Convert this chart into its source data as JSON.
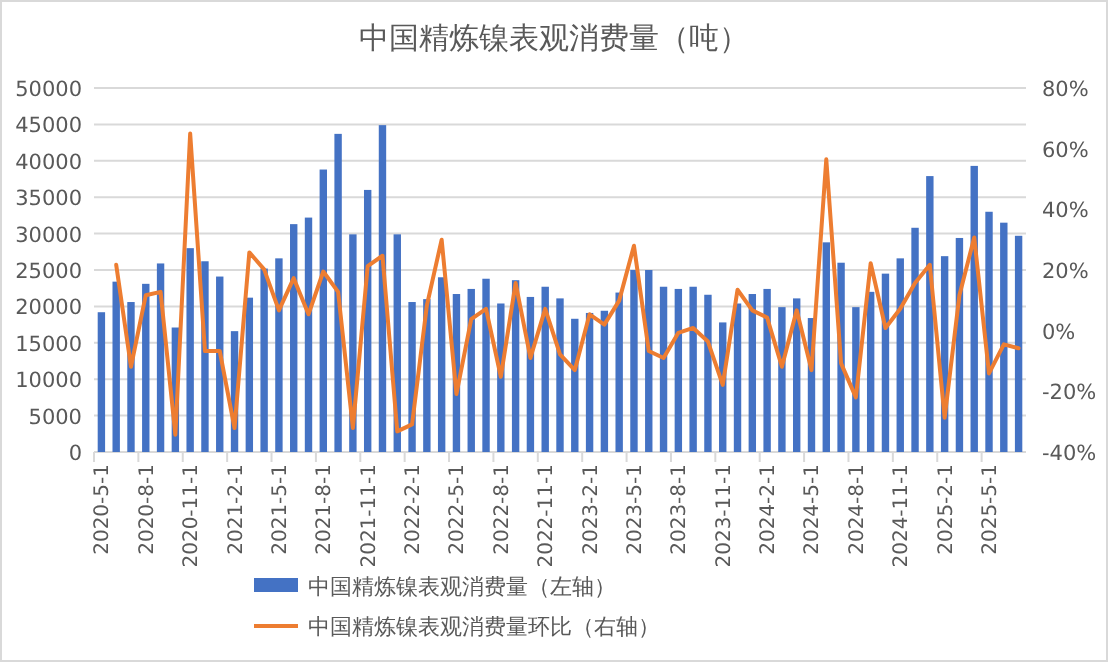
{
  "chart_data": {
    "type": "bar",
    "title": "中国精炼镍表观消费量（吨）",
    "categories": [
      "2020-5-1",
      null,
      null,
      "2020-8-1",
      null,
      null,
      "2020-11-1",
      null,
      null,
      "2021-2-1",
      null,
      null,
      "2021-5-1",
      null,
      null,
      "2021-8-1",
      null,
      null,
      "2021-11-1",
      null,
      null,
      "2022-2-1",
      null,
      null,
      "2022-5-1",
      null,
      null,
      "2022-8-1",
      null,
      null,
      "2022-11-1",
      null,
      null,
      "2023-2-1",
      null,
      null,
      "2023-5-1",
      null,
      null,
      "2023-8-1",
      null,
      null,
      "2023-11-1",
      null,
      null,
      "2024-2-1",
      null,
      null,
      "2024-5-1",
      null,
      null,
      "2024-8-1",
      null,
      null,
      "2024-11-1",
      null,
      null,
      "2025-2-1",
      null,
      null,
      "2025-5-1",
      null,
      null
    ],
    "series": [
      {
        "name": "中国精炼镍表观消费量（左轴）",
        "color": "#4472c4",
        "values": [
          19200,
          23400,
          20600,
          23100,
          25900,
          17100,
          28000,
          26200,
          24100,
          16600,
          21200,
          25200,
          26600,
          31300,
          32200,
          38800,
          43700,
          29900,
          36000,
          44900,
          29900,
          20600,
          21000,
          24000,
          21700,
          22400,
          23800,
          20400,
          23600,
          21300,
          22700,
          21100,
          18300,
          19100,
          19400,
          21900,
          25000,
          25000,
          22700,
          22400,
          22700,
          21600,
          17800,
          20400,
          21700,
          22400,
          19900,
          21100,
          18400,
          28800,
          26000,
          19900,
          22000,
          24500,
          26600,
          30800,
          37900,
          26900,
          29400,
          39300,
          33000,
          31500,
          29700
        ]
      },
      {
        "name": "中国精炼镍表观消费量环比（右轴）",
        "type": "line",
        "axis": "y2",
        "color": "#ed7d31",
        "values": [
          null,
          21.7,
          -11.9,
          11.7,
          12.8,
          -34.3,
          65,
          -6.7,
          -6.7,
          -32.1,
          25.8,
          20.2,
          6.7,
          17.3,
          5.4,
          19.5,
          12.8,
          -32.1,
          21.3,
          24.7,
          -33.2,
          -30.9,
          8.3,
          30,
          -20.9,
          3.8,
          7.2,
          -15.2,
          15.7,
          -9,
          7.2,
          -7.8,
          -13,
          5.4,
          2,
          9.9,
          28,
          -6.7,
          -9,
          -0.7,
          0.9,
          -3.6,
          -17.9,
          13.5,
          6.7,
          4.3,
          -11.9,
          6.7,
          -13,
          56.5,
          -10.8,
          -22,
          22.2,
          0.9,
          7.2,
          15.7,
          21.7,
          -28.7,
          11.7,
          30.7,
          -14.1,
          -4.5,
          -5.8
        ]
      }
    ],
    "ylim": [
      0,
      50000
    ],
    "yticks": [
      0,
      5000,
      10000,
      15000,
      20000,
      25000,
      30000,
      35000,
      40000,
      45000,
      50000
    ],
    "y2lim": [
      -40,
      80
    ],
    "y2ticks": [
      {
        "value": -40,
        "label": "-40%"
      },
      {
        "value": -20,
        "label": "-20%"
      },
      {
        "value": 0,
        "label": "0%"
      },
      {
        "value": 20,
        "label": "20%"
      },
      {
        "value": 40,
        "label": "40%"
      },
      {
        "value": 60,
        "label": "60%"
      },
      {
        "value": 80,
        "label": "80%"
      }
    ],
    "grid": "y",
    "legend": "bottom"
  }
}
